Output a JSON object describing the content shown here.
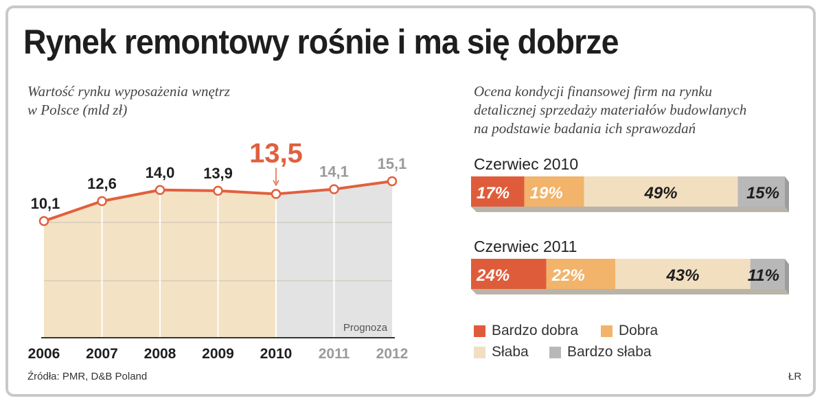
{
  "title": "Rynek remontowy rośnie i ma się dobrze",
  "source": "Źródła: PMR, D&B Poland",
  "credit": "ŁR",
  "colors": {
    "line": "#e0603e",
    "area": "#f4e2c4",
    "forecast_area": "#e3e3e3",
    "bardzo_dobra": "#df5c3a",
    "dobra": "#f2b36a",
    "slaba": "#f1dfc0",
    "bardzo_slaba": "#b8b8b8"
  },
  "chart_data": [
    {
      "type": "area",
      "title": "Wartość rynku wyposażenia wnętrz w Polsce (mld zł)",
      "title_lines": [
        "Wartość rynku wyposażenia wnętrz",
        "w Polsce (mld zł)"
      ],
      "x": [
        "2006",
        "2007",
        "2008",
        "2009",
        "2010",
        "2011",
        "2012"
      ],
      "values": [
        10.1,
        12.6,
        14.0,
        13.9,
        13.5,
        14.1,
        15.1
      ],
      "labels": [
        "10,1",
        "12,6",
        "14,0",
        "13,9",
        "13,5",
        "14,1",
        "15,1"
      ],
      "highlight_index": 4,
      "forecast_from_index": 5,
      "forecast_label": "Prognoza",
      "grid": true
    },
    {
      "type": "bar",
      "orientation": "horizontal-stacked",
      "title": "Ocena kondycji finansowej firm na rynku detalicznej sprzedaży materiałów budowlanych na podstawie badania ich sprawozdań",
      "title_lines": [
        "Ocena kondycji finansowej firm na rynku",
        "detalicznej sprzedaży materiałów budowlanych",
        "na podstawie badania ich sprawozdań"
      ],
      "categories": [
        "Bardzo dobra",
        "Dobra",
        "Słaba",
        "Bardzo słaba"
      ],
      "rows": [
        {
          "label": "Czerwiec 2010",
          "values": [
            17,
            19,
            49,
            15
          ],
          "labels": [
            "17%",
            "19%",
            "49%",
            "15%"
          ]
        },
        {
          "label": "Czerwiec 2011",
          "values": [
            24,
            22,
            43,
            11
          ],
          "labels": [
            "24%",
            "22%",
            "43%",
            "11%"
          ]
        }
      ]
    }
  ]
}
